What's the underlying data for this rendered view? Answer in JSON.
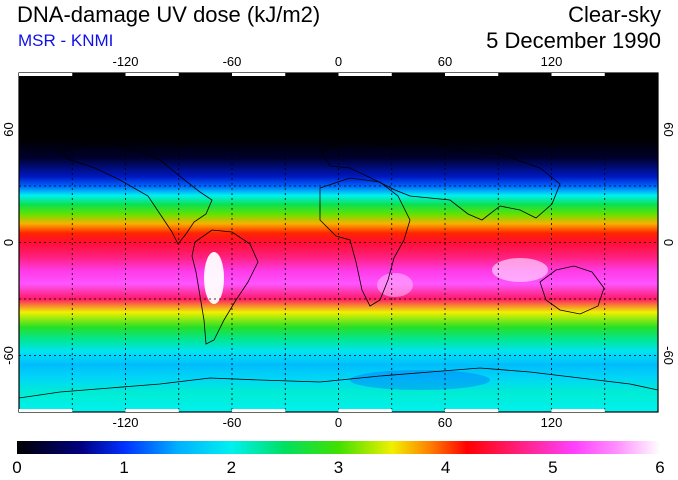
{
  "title": "DNA-damage UV dose (kJ/m2)",
  "source": "MSR - KNMI",
  "sky_condition": "Clear-sky",
  "date": "5 December 1990",
  "colors": {
    "source_text": "#1010e8"
  },
  "map": {
    "lon_range": [
      -180,
      180
    ],
    "lat_range": [
      -90,
      90
    ],
    "grid_lons": [
      -150,
      -120,
      -90,
      -60,
      -30,
      0,
      30,
      60,
      90,
      120,
      150
    ],
    "grid_lats": [
      -60,
      -30,
      0,
      30,
      60
    ],
    "lon_tick_labels": [
      {
        "value": -120,
        "label": "-120"
      },
      {
        "value": -60,
        "label": "-60"
      },
      {
        "value": 0,
        "label": "0"
      },
      {
        "value": 60,
        "label": "60"
      },
      {
        "value": 120,
        "label": "120"
      }
    ],
    "lat_tick_labels": [
      {
        "value": 60,
        "label": "60"
      },
      {
        "value": 0,
        "label": "0"
      },
      {
        "value": -60,
        "label": "-60"
      }
    ],
    "latitude_dose_profile": [
      {
        "lat": 90,
        "dose": 0.0
      },
      {
        "lat": 55,
        "dose": 0.0
      },
      {
        "lat": 45,
        "dose": 0.2
      },
      {
        "lat": 35,
        "dose": 0.8
      },
      {
        "lat": 30,
        "dose": 1.2
      },
      {
        "lat": 25,
        "dose": 2.0
      },
      {
        "lat": 20,
        "dose": 2.6
      },
      {
        "lat": 15,
        "dose": 3.1
      },
      {
        "lat": 10,
        "dose": 3.7
      },
      {
        "lat": 5,
        "dose": 4.1
      },
      {
        "lat": 0,
        "dose": 4.4
      },
      {
        "lat": -8,
        "dose": 4.7
      },
      {
        "lat": -15,
        "dose": 5.1
      },
      {
        "lat": -22,
        "dose": 5.3
      },
      {
        "lat": -30,
        "dose": 4.6
      },
      {
        "lat": -37,
        "dose": 3.5
      },
      {
        "lat": -45,
        "dose": 2.8
      },
      {
        "lat": -52,
        "dose": 2.3
      },
      {
        "lat": -58,
        "dose": 1.9
      },
      {
        "lat": -65,
        "dose": 1.6
      },
      {
        "lat": -72,
        "dose": 1.8
      },
      {
        "lat": -80,
        "dose": 2.1
      },
      {
        "lat": -90,
        "dose": 2.0
      }
    ]
  },
  "colorbar": {
    "min": 0,
    "max": 6,
    "labels": [
      "0",
      "1",
      "2",
      "3",
      "4",
      "5",
      "6"
    ],
    "stops": [
      {
        "value": 0.0,
        "color": "#000000"
      },
      {
        "value": 0.6,
        "color": "#000080"
      },
      {
        "value": 1.0,
        "color": "#0030ff"
      },
      {
        "value": 1.5,
        "color": "#00b0ff"
      },
      {
        "value": 2.0,
        "color": "#00f0f0"
      },
      {
        "value": 2.5,
        "color": "#00e060"
      },
      {
        "value": 3.0,
        "color": "#40e000"
      },
      {
        "value": 3.5,
        "color": "#f0f000"
      },
      {
        "value": 3.85,
        "color": "#ff8000"
      },
      {
        "value": 4.2,
        "color": "#ff0000"
      },
      {
        "value": 4.7,
        "color": "#ff2080"
      },
      {
        "value": 5.2,
        "color": "#ff40ff"
      },
      {
        "value": 5.6,
        "color": "#ff90ff"
      },
      {
        "value": 6.0,
        "color": "#ffffff"
      }
    ]
  }
}
